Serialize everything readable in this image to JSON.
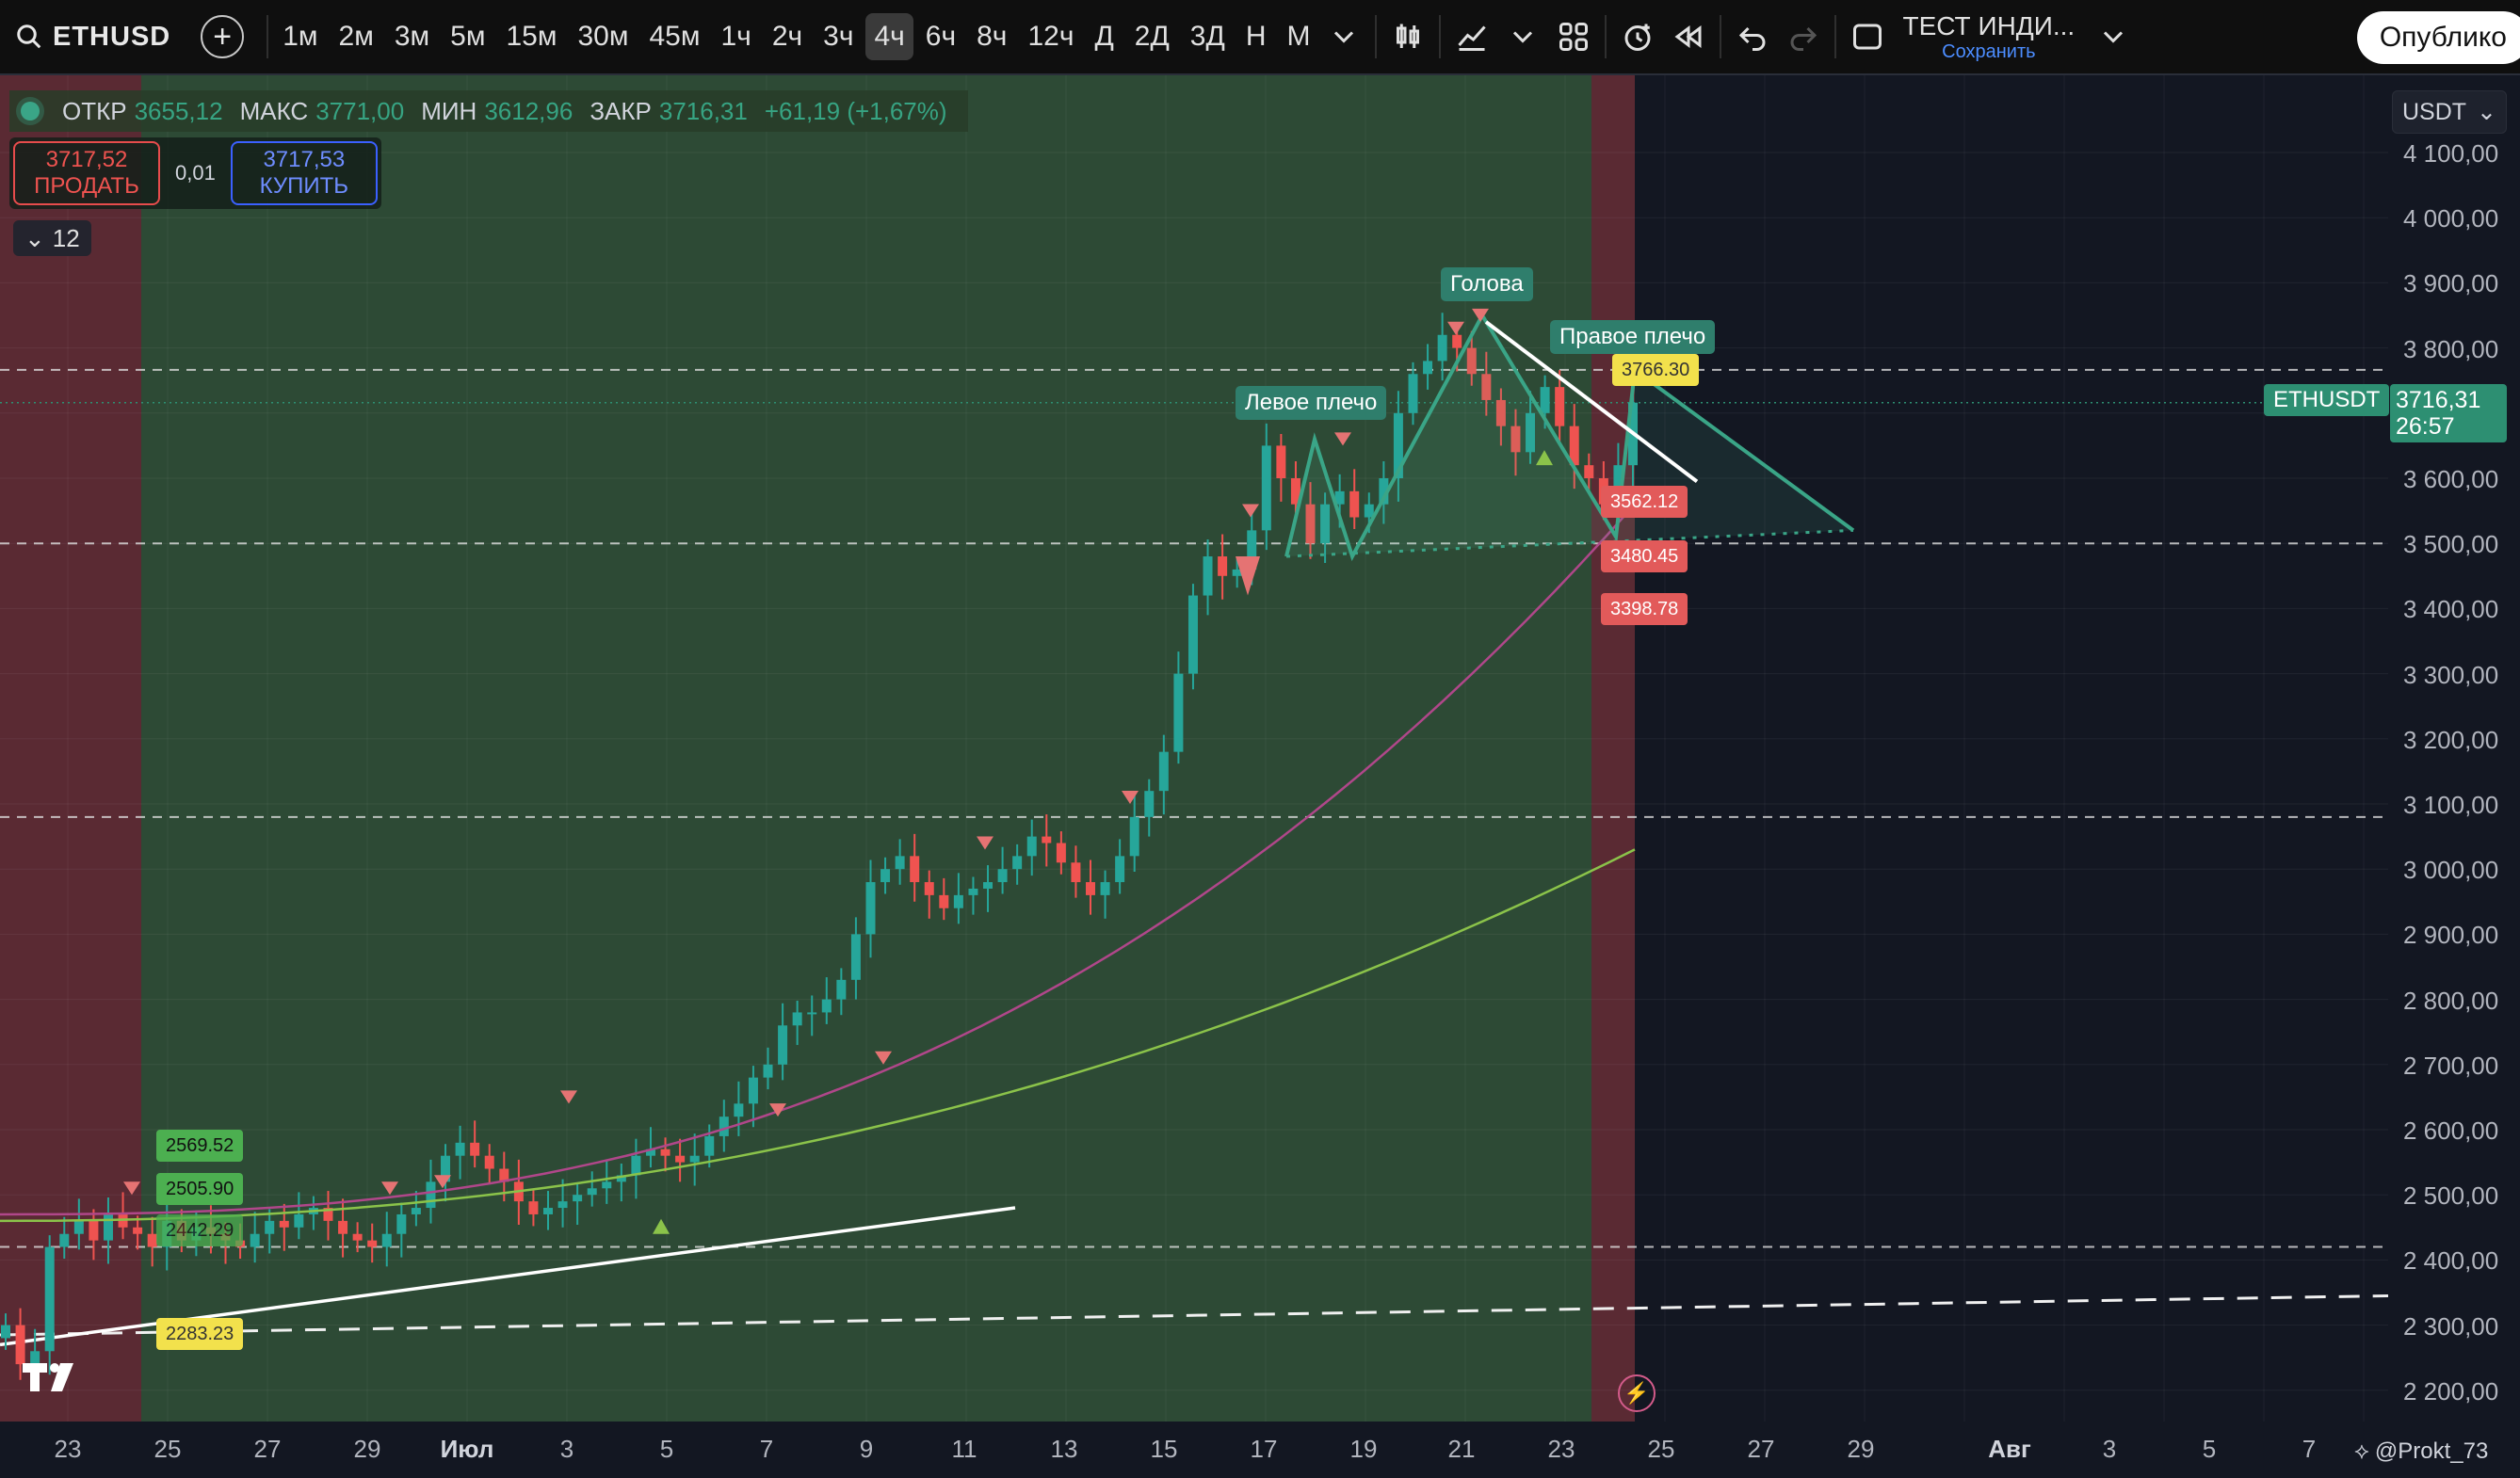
{
  "toolbar": {
    "symbol": "ETHUSD",
    "intervals": [
      "1м",
      "2м",
      "3м",
      "5м",
      "15м",
      "30м",
      "45м",
      "1ч",
      "2ч",
      "3ч",
      "4ч",
      "6ч",
      "8ч",
      "12ч",
      "Д",
      "2Д",
      "3Д",
      "Н",
      "М"
    ],
    "active_interval": "4ч",
    "layout_title": "ТЕСТ ИНДИ...",
    "layout_save": "Сохранить",
    "publish": "Опублико"
  },
  "legend": {
    "open_label": "ОТКР",
    "open": "3655,12",
    "high_label": "МАКС",
    "high": "3771,00",
    "low_label": "МИН",
    "low": "3612,96",
    "close_label": "ЗАКР",
    "close": "3716,31",
    "change": "+61,19 (+1,67%)"
  },
  "trade": {
    "sell_price": "3717,52",
    "sell_label": "ПРОДАТЬ",
    "spread": "0,01",
    "buy_price": "3717,53",
    "buy_label": "КУПИТЬ"
  },
  "indicators_collapse": "12",
  "currency": "USDT",
  "current_price": {
    "symbol": "ETHUSDT",
    "price": "3716,31",
    "countdown": "26:57"
  },
  "pattern_labels": {
    "left_shoulder": "Левое плечо",
    "head": "Голова",
    "right_shoulder": "Правое плечо"
  },
  "price_tags": {
    "t2569": "2569.52",
    "t2505": "2505.90",
    "t2442": "2442.29",
    "t2283": "2283.23",
    "t3766": "3766.30",
    "t3562": "3562.12",
    "t3480": "3480.45",
    "t3398": "3398.78"
  },
  "credit": "@Prokt_73",
  "colors": {
    "up": "#26a69a",
    "down": "#ef5350",
    "bg": "#131722",
    "green_zone": "#2d4a35",
    "red_zone": "#5a2a33"
  },
  "chart_data": {
    "type": "candlestick",
    "symbol": "ETHUSD",
    "interval": "4ч",
    "ylim": [
      2150,
      4150
    ],
    "y_ticks": [
      "4 100,00",
      "4 000,00",
      "3 900,00",
      "3 800,00",
      "3 700,00",
      "3 600,00",
      "3 500,00",
      "3 400,00",
      "3 300,00",
      "3 200,00",
      "3 100,00",
      "3 000,00",
      "2 900,00",
      "2 800,00",
      "2 700,00",
      "2 600,00",
      "2 500,00",
      "2 400,00",
      "2 300,00",
      "2 200,00"
    ],
    "x_ticks": [
      "23",
      "25",
      "27",
      "29",
      "Июл",
      "3",
      "5",
      "7",
      "9",
      "11",
      "13",
      "15",
      "17",
      "19",
      "21",
      "23",
      "25",
      "27",
      "29",
      "Авг",
      "3",
      "5",
      "7"
    ],
    "closes": [
      2300,
      2240,
      2260,
      2420,
      2440,
      2460,
      2430,
      2470,
      2450,
      2440,
      2420,
      2460,
      2430,
      2450,
      2440,
      2430,
      2420,
      2440,
      2460,
      2450,
      2470,
      2480,
      2460,
      2440,
      2430,
      2420,
      2440,
      2470,
      2480,
      2520,
      2560,
      2580,
      2560,
      2540,
      2520,
      2490,
      2470,
      2480,
      2490,
      2500,
      2510,
      2520,
      2530,
      2560,
      2570,
      2560,
      2550,
      2560,
      2590,
      2620,
      2640,
      2680,
      2700,
      2760,
      2780,
      2780,
      2800,
      2830,
      2900,
      2980,
      3000,
      3020,
      2980,
      2960,
      2940,
      2960,
      2970,
      2980,
      3000,
      3020,
      3050,
      3040,
      3010,
      2980,
      2960,
      2980,
      3020,
      3080,
      3120,
      3180,
      3300,
      3420,
      3480,
      3450,
      3460,
      3520,
      3650,
      3600,
      3560,
      3500,
      3560,
      3580,
      3540,
      3560,
      3600,
      3700,
      3760,
      3780,
      3820,
      3800,
      3760,
      3720,
      3680,
      3640,
      3700,
      3740,
      3680,
      3620,
      3600,
      3560,
      3620,
      3716
    ],
    "ma_purple_start": 2470,
    "ma_purple_end": 3560,
    "ma_green_start": 2460,
    "ma_green_end": 3030,
    "key_levels": [
      3766.3,
      3716.31,
      3500,
      3080,
      2420
    ]
  }
}
